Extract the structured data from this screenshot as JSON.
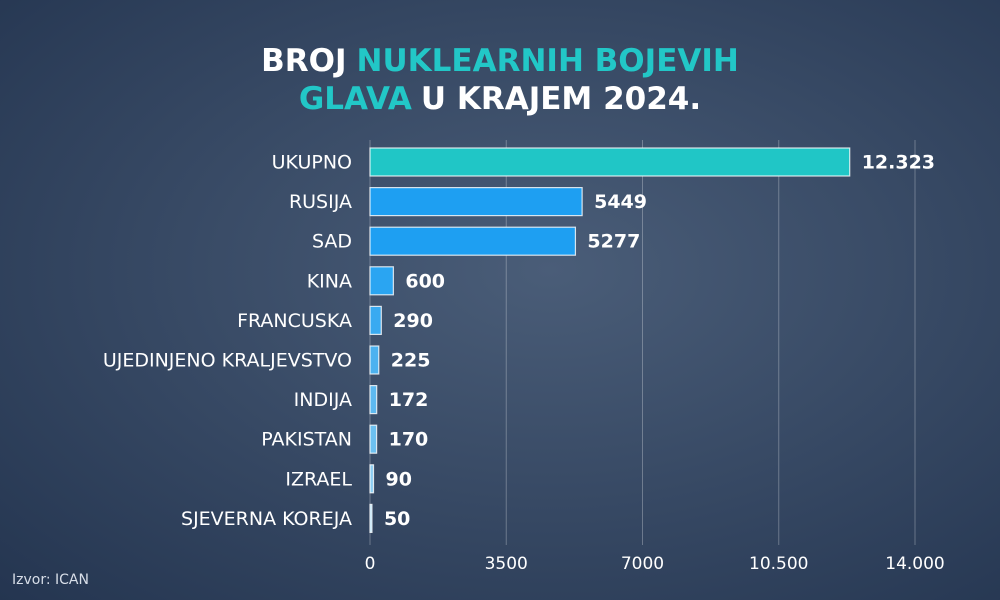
{
  "chart_data": {
    "type": "bar",
    "orientation": "horizontal",
    "title_lines": [
      [
        {
          "text": "BROJ",
          "color": "#ffffff"
        },
        {
          "text": "NUKLEARNIH BOJEVIH",
          "color": "#22c7c7"
        }
      ],
      [
        {
          "text": "GLAVA",
          "color": "#22c7c7"
        },
        {
          "text": "U KRAJEM 2024.",
          "color": "#ffffff"
        }
      ]
    ],
    "categories": [
      "UKUPNO",
      "RUSIJA",
      "SAD",
      "KINA",
      "FRANCUSKA",
      "UJEDINJENO KRALJEVSTVO",
      "INDIJA",
      "PAKISTAN",
      "IZRAEL",
      "SJEVERNA KOREJA"
    ],
    "values": [
      12323,
      5449,
      5277,
      600,
      290,
      225,
      172,
      170,
      90,
      50
    ],
    "value_labels": [
      "12.323",
      "5449",
      "5277",
      "600",
      "290",
      "225",
      "172",
      "170",
      "90",
      "50"
    ],
    "colors": [
      "#20c6c6",
      "#1e9ff2",
      "#1e9ff2",
      "#2aa5f2",
      "#39aaf1",
      "#4cb2f0",
      "#5db9f0",
      "#6cc0f0",
      "#8bcdf2",
      "#a9d9f4"
    ],
    "xlim": [
      0,
      14000
    ],
    "xticks": [
      0,
      3500,
      7000,
      {
        "value": 10500,
        "label": "10.500"
      },
      {
        "value": 14000,
        "label": "14.000"
      }
    ],
    "grid": true,
    "source": "Izvor: ICAN"
  }
}
